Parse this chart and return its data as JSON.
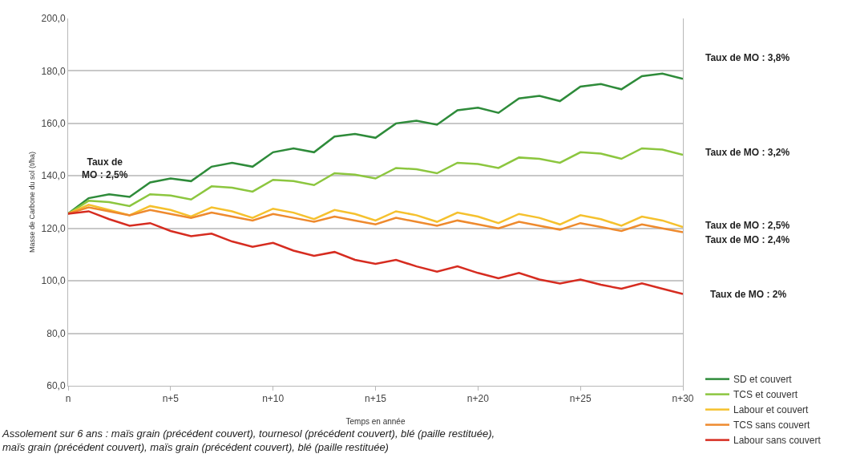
{
  "chart_data": {
    "type": "line",
    "xlabel": "Temps en année",
    "ylabel": "Masse de Carbone du sol (t/ha)",
    "categories": [
      "n",
      null,
      null,
      null,
      null,
      "n+5",
      null,
      null,
      null,
      null,
      "n+10",
      null,
      null,
      null,
      null,
      "n+15",
      null,
      null,
      null,
      null,
      "n+20",
      null,
      null,
      null,
      null,
      "n+25",
      null,
      null,
      null,
      null,
      "n+30"
    ],
    "series": [
      {
        "name": "SD et couvert",
        "color": "#2e8b3a",
        "values": [
          125.6,
          131.5,
          133,
          132,
          137.5,
          139,
          138,
          143.5,
          145,
          143.5,
          149,
          150.5,
          149,
          155,
          156,
          154.5,
          160,
          161,
          159.5,
          165,
          166,
          164,
          169.5,
          170.5,
          168.5,
          174,
          175,
          173,
          178,
          179,
          177
        ]
      },
      {
        "name": "TCS et couvert",
        "color": "#8cc63f",
        "values": [
          125.6,
          130.5,
          130,
          128.5,
          133,
          132.5,
          131,
          136,
          135.5,
          134,
          138.5,
          138,
          136.5,
          141,
          140.5,
          139,
          143,
          142.5,
          141,
          145,
          144.5,
          143,
          147,
          146.5,
          145,
          149,
          148.5,
          146.5,
          150.5,
          150,
          148
        ]
      },
      {
        "name": "Labour et couvert",
        "color": "#f5c12e",
        "values": [
          125.6,
          129,
          127,
          125,
          128.5,
          127,
          124.5,
          128,
          126.5,
          124,
          127.5,
          126,
          123.5,
          127,
          125.5,
          123,
          126.5,
          125,
          122.5,
          126,
          124.5,
          122,
          125.5,
          124,
          121.5,
          125,
          123.5,
          121,
          124.5,
          123,
          120.5
        ]
      },
      {
        "name": "TCS sans couvert",
        "color": "#ee8a2e",
        "values": [
          125.6,
          128,
          126.5,
          125,
          127,
          125.5,
          124,
          126,
          124.5,
          123,
          125.5,
          124,
          122.5,
          124.5,
          123,
          121.5,
          124,
          122.5,
          121,
          123,
          121.5,
          120,
          122.5,
          121,
          119.5,
          122,
          120.5,
          119,
          121.5,
          120,
          118.5
        ]
      },
      {
        "name": "Labour sans couvert",
        "color": "#d62c20",
        "values": [
          125.6,
          126.5,
          123.5,
          121,
          122,
          119,
          117,
          118,
          115,
          113,
          114.5,
          111.5,
          109.5,
          111,
          108,
          106.5,
          108,
          105.5,
          103.5,
          105.5,
          103,
          101,
          103,
          100.5,
          99,
          100.5,
          98.5,
          97,
          99,
          97,
          95
        ]
      }
    ],
    "ylim": [
      60,
      200
    ],
    "yticks": [
      {
        "value": 60,
        "label": "60,0"
      },
      {
        "value": 80,
        "label": "80,0"
      },
      {
        "value": 100,
        "label": "100,0"
      },
      {
        "value": 120,
        "label": "120,0"
      },
      {
        "value": 140,
        "label": "140,0"
      },
      {
        "value": 160,
        "label": "160,0"
      },
      {
        "value": 180,
        "label": "180,0"
      },
      {
        "value": 200,
        "label": "200,0"
      }
    ],
    "annotations": [
      "Taux de\nMO : 2,5%",
      "Taux de MO : 3,8%",
      "Taux de MO : 3,2%",
      "Taux de MO : 2,5%",
      "Taux de MO : 2,4%",
      "Taux de MO : 2%",
      "Assolement sur 6 ans : maïs grain (précédent couvert), tournesol (précédent couvert), blé (paille restituée),\nmaïs grain (précédent couvert), maïs grain (précédent couvert), blé (paille restituée)"
    ],
    "grid": "y",
    "legend": "bottom right",
    "marker": "none",
    "line_style": "solid"
  }
}
